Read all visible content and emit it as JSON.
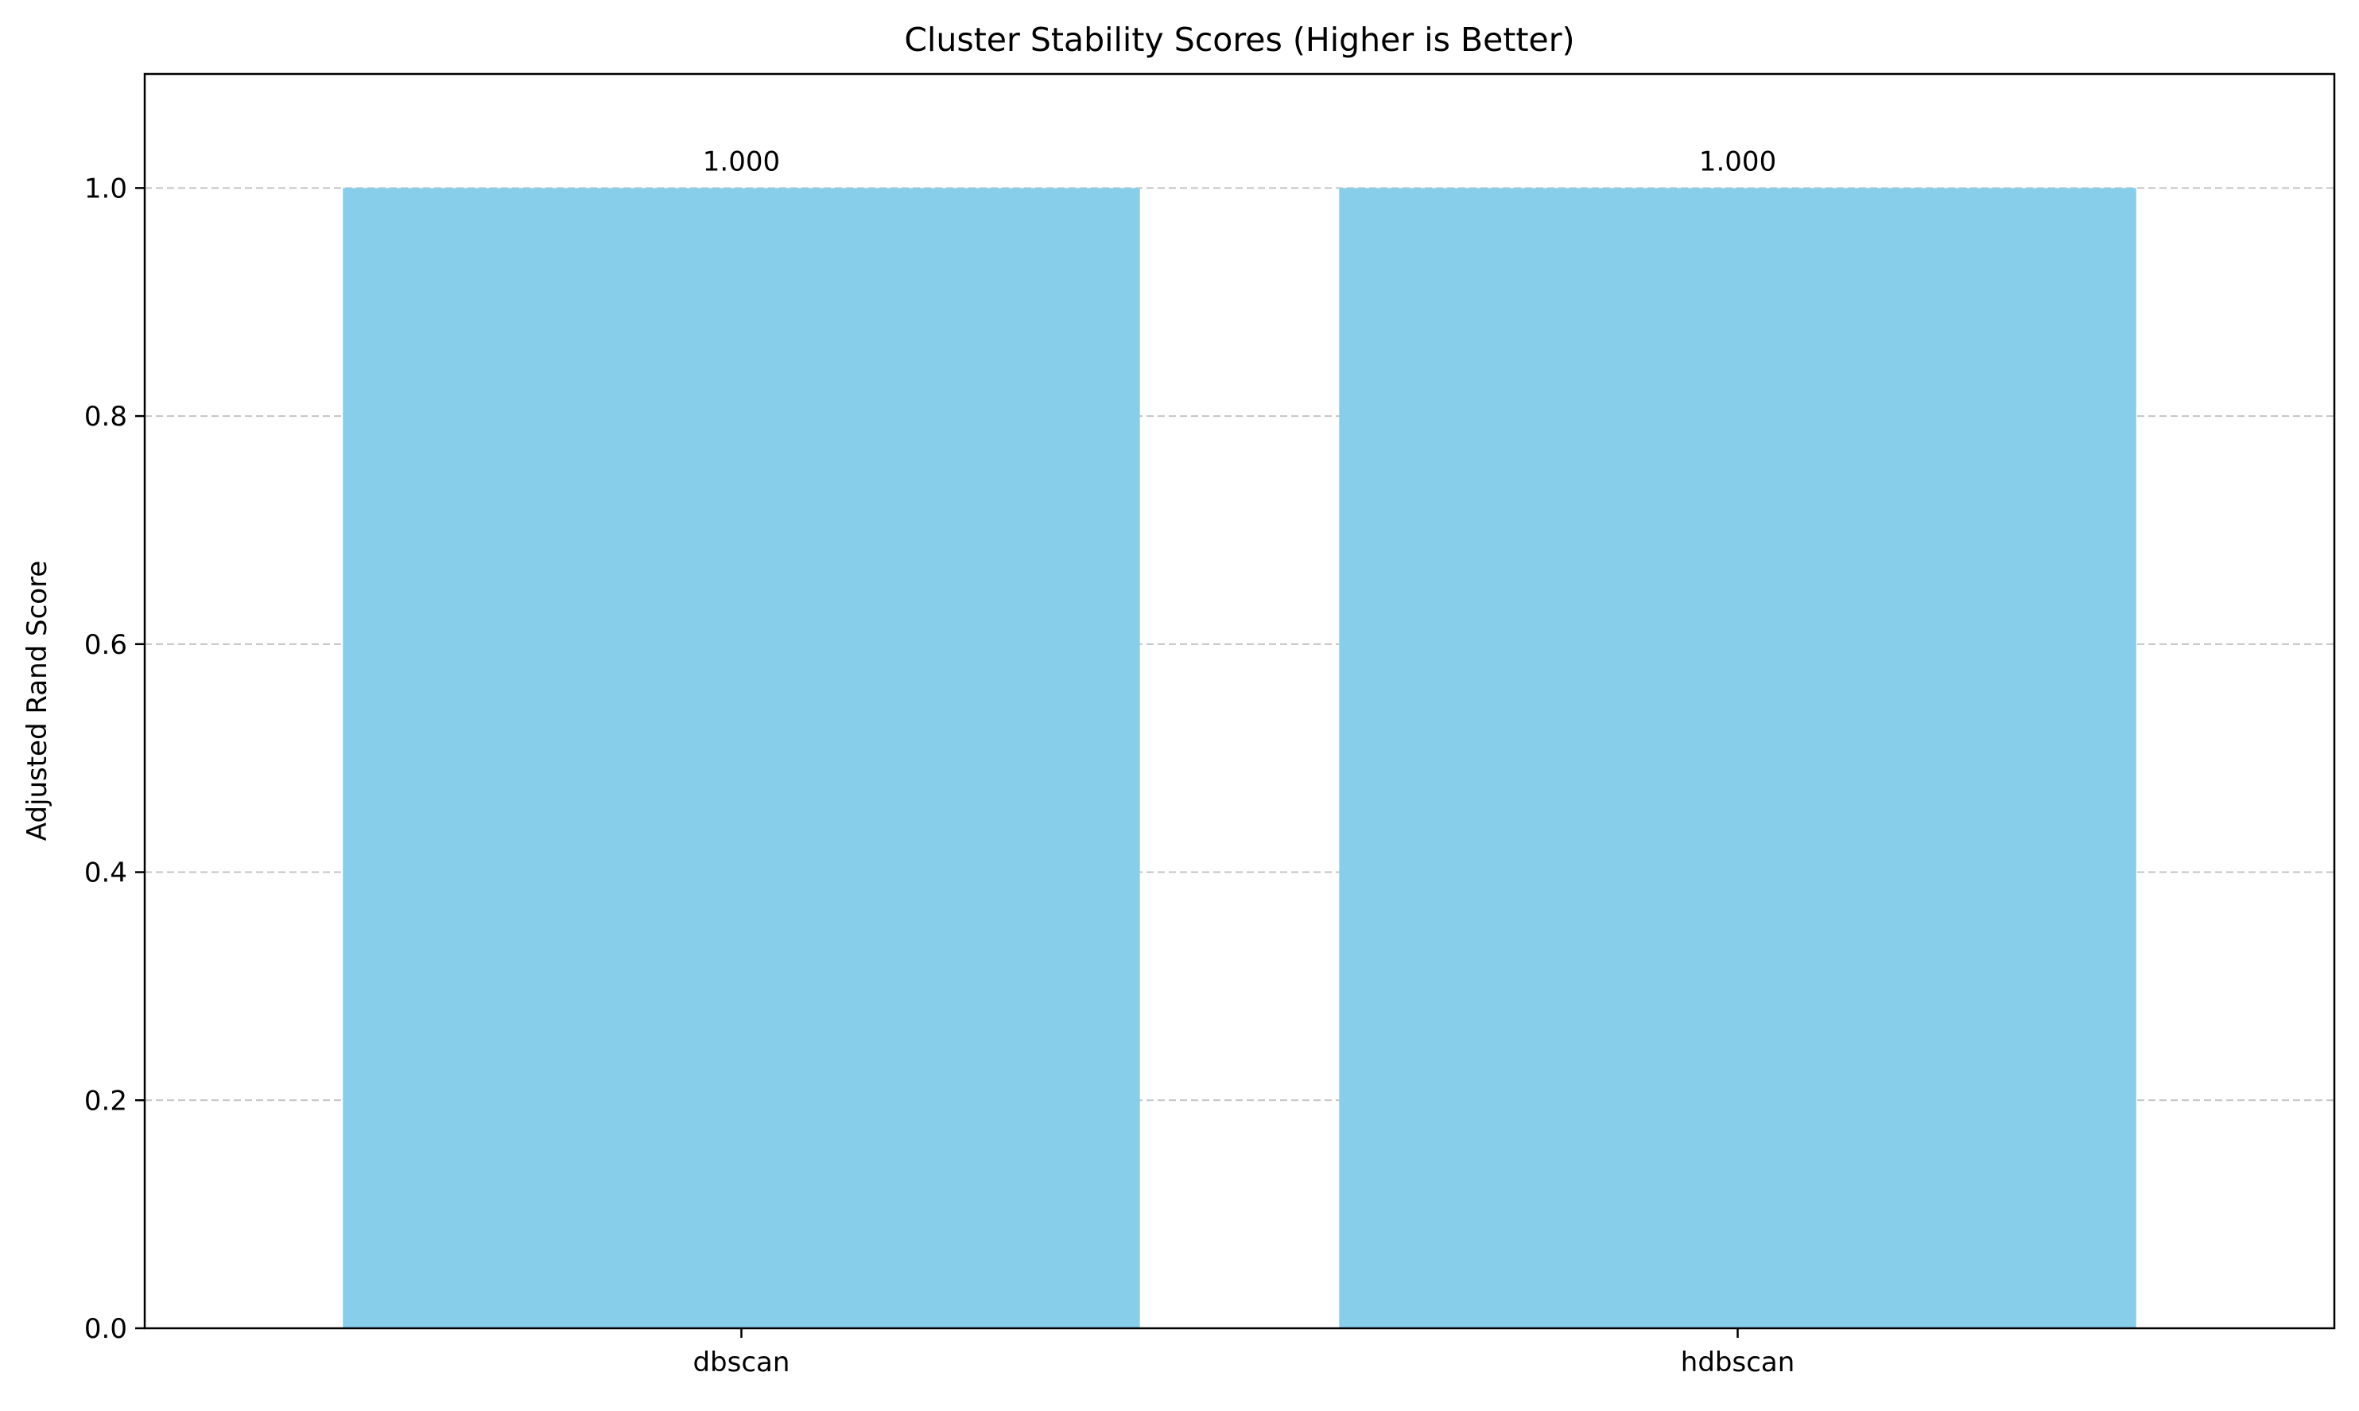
{
  "chart_data": {
    "type": "bar",
    "title": "Cluster Stability Scores (Higher is Better)",
    "xlabel": "",
    "ylabel": "Adjusted Rand Score",
    "categories": [
      "dbscan",
      "hdbscan"
    ],
    "values": [
      1.0,
      1.0
    ],
    "value_labels": [
      "1.000",
      "1.000"
    ],
    "ylim": [
      0,
      1.1
    ],
    "yticks": [
      0.0,
      0.2,
      0.4,
      0.6,
      0.8,
      1.0
    ],
    "ytick_labels": [
      "0.0",
      "0.2",
      "0.4",
      "0.6",
      "0.8",
      "1.0"
    ],
    "grid": "y-dashed",
    "legend": "none",
    "colors": {
      "bar": "#87CEEB",
      "grid": "#c4c4c4",
      "axis": "#000000"
    }
  }
}
